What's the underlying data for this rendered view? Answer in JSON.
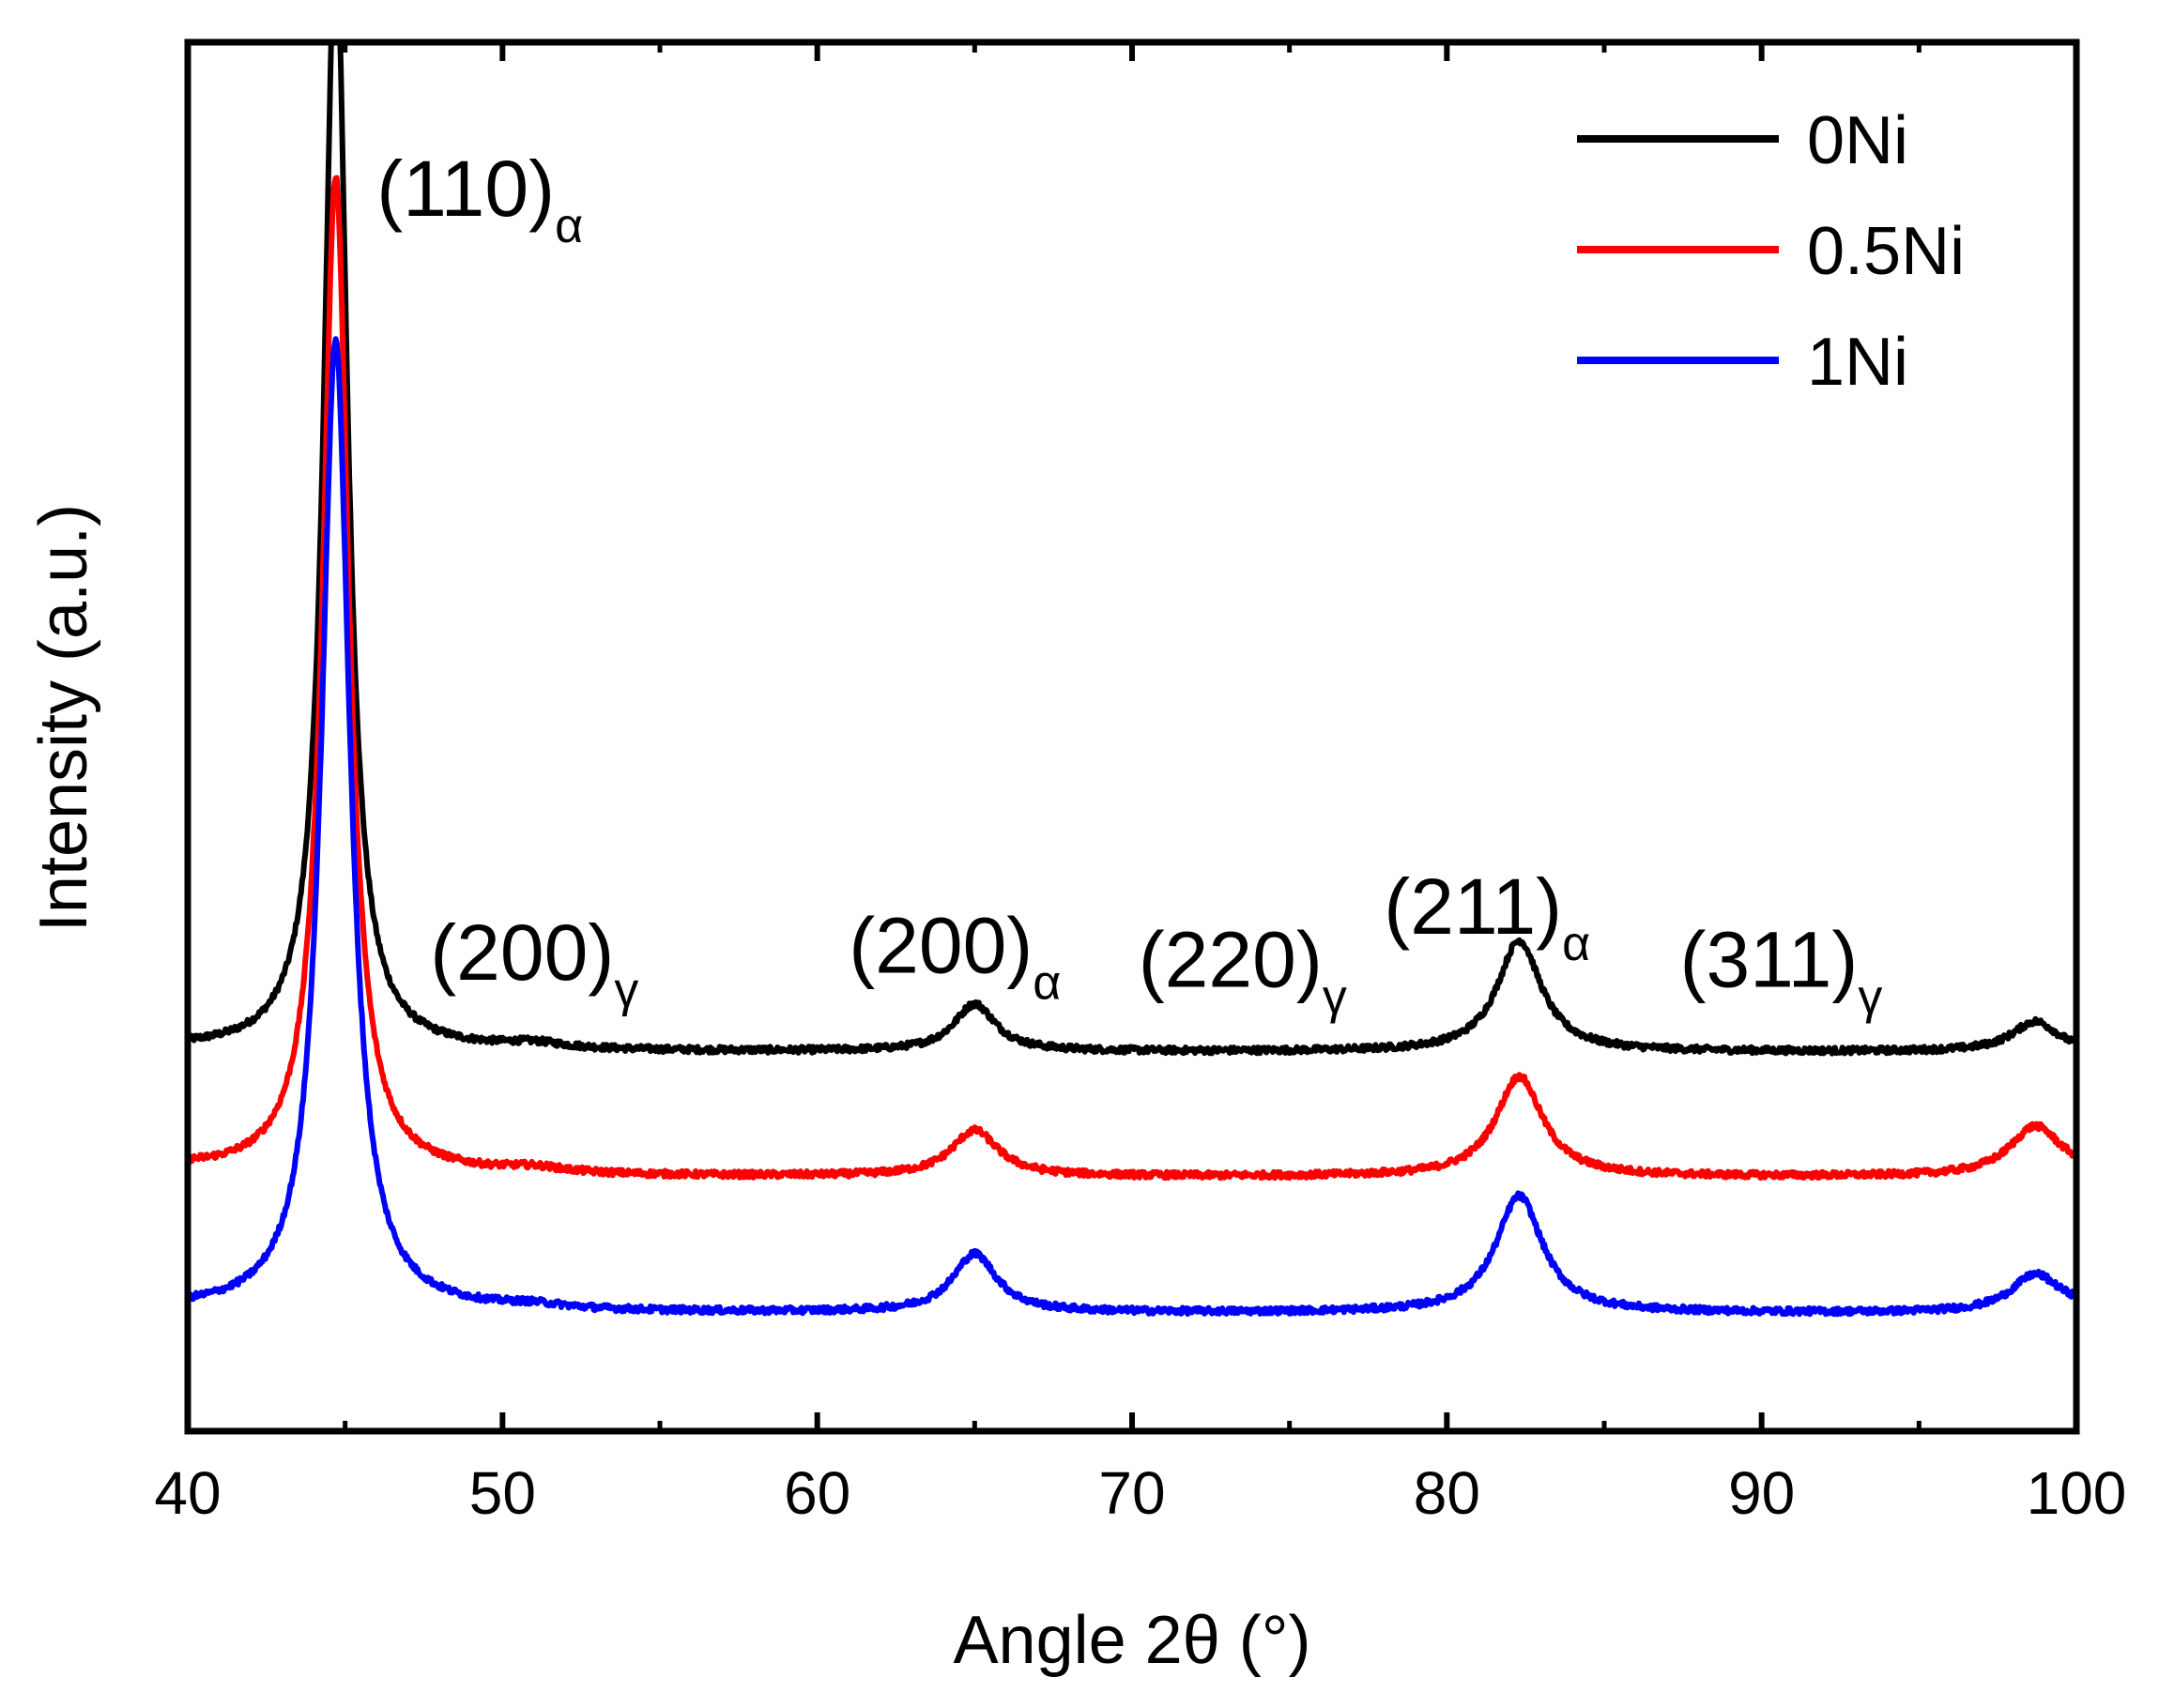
{
  "chart_data": {
    "type": "line",
    "title": "",
    "xlabel": "Angle 2θ (°)",
    "ylabel": "Intensity (a.u.)",
    "xlim": [
      40,
      100
    ],
    "ylim": [
      0,
      100
    ],
    "x_ticks": [
      40,
      50,
      60,
      70,
      80,
      90,
      100
    ],
    "x_ticks_minor": [
      45,
      55,
      65,
      75,
      85,
      95
    ],
    "y_ticks_visible": false,
    "grid": false,
    "legend_position": "top-right",
    "series": [
      {
        "name": "0Ni",
        "color": "#000000",
        "baseline": 27.3,
        "edge_values": [
          27.5,
          27.2
        ],
        "peaks": [
          {
            "x": 44.7,
            "height": 80,
            "width": 0.45
          },
          {
            "x": 51.0,
            "height": 0.4,
            "width": 1.2
          },
          {
            "x": 65.0,
            "height": 3.4,
            "width": 0.8
          },
          {
            "x": 82.3,
            "height": 8.0,
            "width": 0.85
          },
          {
            "x": 98.7,
            "height": 2.2,
            "width": 0.9
          }
        ]
      },
      {
        "name": "0.5Ni",
        "color": "#ff0000",
        "baseline": 18.3,
        "edge_values": [
          18.8,
          18.5
        ],
        "peaks": [
          {
            "x": 44.7,
            "height": 72,
            "width": 0.5
          },
          {
            "x": 51.0,
            "height": 0.4,
            "width": 1.2
          },
          {
            "x": 65.0,
            "height": 3.3,
            "width": 0.9
          },
          {
            "x": 82.3,
            "height": 7.2,
            "width": 0.9
          },
          {
            "x": 98.7,
            "height": 3.6,
            "width": 1.0
          }
        ]
      },
      {
        "name": "1Ni",
        "color": "#0000ff",
        "baseline": 8.5,
        "edge_values": [
          8.7,
          8.8
        ],
        "peaks": [
          {
            "x": 44.7,
            "height": 70,
            "width": 0.55
          },
          {
            "x": 51.0,
            "height": 0.3,
            "width": 1.2
          },
          {
            "x": 65.0,
            "height": 4.2,
            "width": 0.85
          },
          {
            "x": 82.3,
            "height": 8.4,
            "width": 0.9
          },
          {
            "x": 98.7,
            "height": 2.7,
            "width": 0.95
          }
        ]
      }
    ],
    "annotations": [
      {
        "main": "(110)",
        "sub": "α",
        "x": 46.0,
        "y": 87.5
      },
      {
        "main": "(200)",
        "sub": "γ",
        "x": 47.7,
        "y": 32.5
      },
      {
        "main": "(200)",
        "sub": "α",
        "x": 61.0,
        "y": 33.0
      },
      {
        "main": "(220)",
        "sub": "γ",
        "x": 70.2,
        "y": 32.0
      },
      {
        "main": "(211)",
        "sub": "α",
        "x": 78.0,
        "y": 35.8
      },
      {
        "main": "(311)",
        "sub": "γ",
        "x": 87.4,
        "y": 32.0
      }
    ]
  }
}
